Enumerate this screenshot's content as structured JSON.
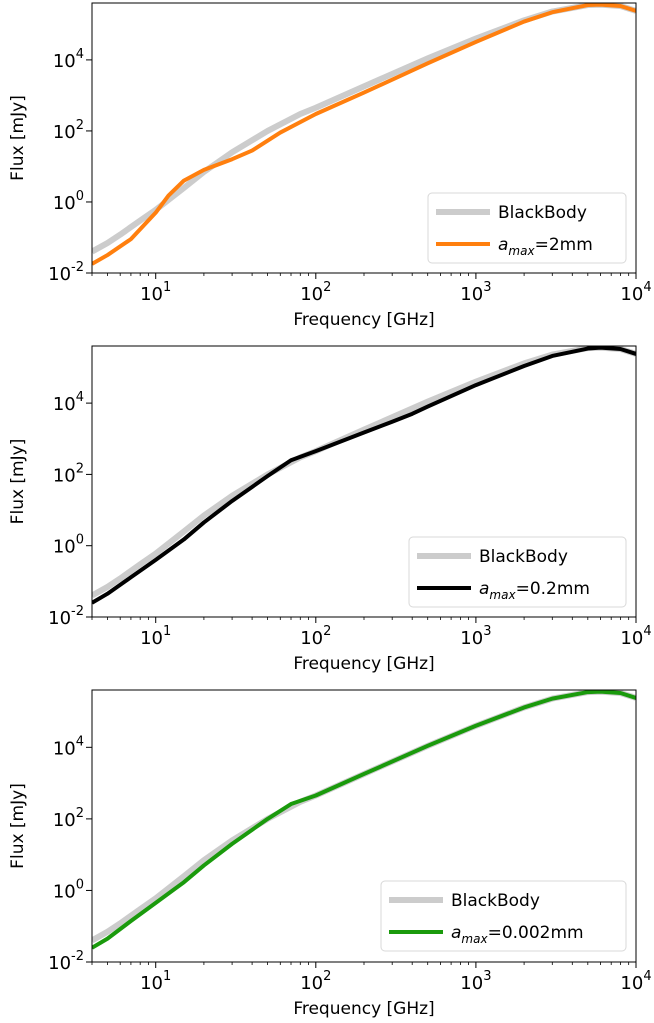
{
  "chart_data": [
    {
      "type": "line",
      "xlabel": "Frequency [GHz]",
      "ylabel": "Flux [mJy]",
      "xscale": "log",
      "yscale": "log",
      "xlim": [
        4,
        10000
      ],
      "ylim": [
        0.01,
        400000
      ],
      "xticks": [
        {
          "base": "10",
          "exp": "1",
          "value": 10
        },
        {
          "base": "10",
          "exp": "2",
          "value": 100
        },
        {
          "base": "10",
          "exp": "3",
          "value": 1000
        },
        {
          "base": "10",
          "exp": "4",
          "value": 10000
        }
      ],
      "yticks": [
        {
          "base": "10",
          "exp": "-2",
          "value": 0.01
        },
        {
          "base": "10",
          "exp": "0",
          "value": 1
        },
        {
          "base": "10",
          "exp": "2",
          "value": 100
        },
        {
          "base": "10",
          "exp": "4",
          "value": 10000
        }
      ],
      "legend_position": "lower right",
      "series": [
        {
          "name": "BlackBody",
          "color": "#cccccc",
          "x": [
            4,
            5,
            6,
            8,
            10,
            15,
            20,
            30,
            50,
            80,
            100,
            200,
            500,
            1000,
            2000,
            3000,
            5000,
            6000,
            8000,
            10000
          ],
          "y": [
            0.04,
            0.07,
            0.12,
            0.3,
            0.6,
            2.5,
            7,
            25,
            100,
            300,
            450,
            1800,
            11000,
            40000,
            130000,
            230000,
            350000,
            360000,
            330000,
            240000
          ]
        },
        {
          "name": "a_max=2mm",
          "label_prefix": "a",
          "label_sub": "max",
          "label_suffix": "=2mm",
          "color": "#ff7f0e",
          "x": [
            4,
            5,
            7,
            10,
            12,
            15,
            20,
            30,
            40,
            60,
            100,
            200,
            500,
            1000,
            2000,
            3000,
            5000,
            6000,
            8000,
            10000
          ],
          "y": [
            0.018,
            0.032,
            0.09,
            0.5,
            1.5,
            4,
            8,
            16,
            28,
            90,
            300,
            1200,
            8000,
            32000,
            120000,
            220000,
            350000,
            360000,
            330000,
            240000
          ]
        }
      ]
    },
    {
      "type": "line",
      "xlabel": "Frequency [GHz]",
      "ylabel": "Flux [mJy]",
      "xscale": "log",
      "yscale": "log",
      "xlim": [
        4,
        10000
      ],
      "ylim": [
        0.01,
        400000
      ],
      "xticks": [
        {
          "base": "10",
          "exp": "1",
          "value": 10
        },
        {
          "base": "10",
          "exp": "2",
          "value": 100
        },
        {
          "base": "10",
          "exp": "3",
          "value": 1000
        },
        {
          "base": "10",
          "exp": "4",
          "value": 10000
        }
      ],
      "yticks": [
        {
          "base": "10",
          "exp": "-2",
          "value": 0.01
        },
        {
          "base": "10",
          "exp": "0",
          "value": 1
        },
        {
          "base": "10",
          "exp": "2",
          "value": 100
        },
        {
          "base": "10",
          "exp": "4",
          "value": 10000
        }
      ],
      "legend_position": "lower right",
      "series": [
        {
          "name": "BlackBody",
          "color": "#cccccc",
          "x": [
            4,
            5,
            6,
            8,
            10,
            15,
            20,
            30,
            50,
            80,
            100,
            200,
            500,
            1000,
            2000,
            3000,
            5000,
            6000,
            8000,
            10000
          ],
          "y": [
            0.04,
            0.07,
            0.12,
            0.3,
            0.6,
            2.5,
            7,
            25,
            100,
            300,
            450,
            1800,
            11000,
            40000,
            130000,
            230000,
            350000,
            360000,
            330000,
            240000
          ]
        },
        {
          "name": "a_max=0.2mm",
          "label_prefix": "a",
          "label_sub": "max",
          "label_suffix": "=0.2mm",
          "color": "#000000",
          "x": [
            4,
            5,
            7,
            10,
            15,
            20,
            30,
            50,
            70,
            100,
            200,
            300,
            400,
            500,
            1000,
            2000,
            3000,
            5000,
            6000,
            8000,
            10000
          ],
          "y": [
            0.025,
            0.045,
            0.13,
            0.4,
            1.5,
            4.5,
            18,
            90,
            250,
            450,
            1500,
            3000,
            5000,
            8000,
            32000,
            110000,
            210000,
            340000,
            360000,
            330000,
            240000
          ]
        }
      ]
    },
    {
      "type": "line",
      "xlabel": "Frequency [GHz]",
      "ylabel": "Flux [mJy]",
      "xscale": "log",
      "yscale": "log",
      "xlim": [
        4,
        10000
      ],
      "ylim": [
        0.01,
        400000
      ],
      "xticks": [
        {
          "base": "10",
          "exp": "1",
          "value": 10
        },
        {
          "base": "10",
          "exp": "2",
          "value": 100
        },
        {
          "base": "10",
          "exp": "3",
          "value": 1000
        },
        {
          "base": "10",
          "exp": "4",
          "value": 10000
        }
      ],
      "yticks": [
        {
          "base": "10",
          "exp": "-2",
          "value": 0.01
        },
        {
          "base": "10",
          "exp": "0",
          "value": 1
        },
        {
          "base": "10",
          "exp": "2",
          "value": 100
        },
        {
          "base": "10",
          "exp": "4",
          "value": 10000
        }
      ],
      "legend_position": "lower right",
      "series": [
        {
          "name": "BlackBody",
          "color": "#cccccc",
          "x": [
            4,
            5,
            6,
            8,
            10,
            15,
            20,
            30,
            50,
            80,
            100,
            200,
            500,
            1000,
            2000,
            3000,
            5000,
            6000,
            8000,
            10000
          ],
          "y": [
            0.04,
            0.07,
            0.12,
            0.3,
            0.6,
            2.5,
            7,
            25,
            100,
            300,
            450,
            1800,
            11000,
            40000,
            130000,
            230000,
            350000,
            360000,
            330000,
            240000
          ]
        },
        {
          "name": "a_max=0.002mm",
          "label_prefix": "a",
          "label_sub": "max",
          "label_suffix": "=0.002mm",
          "color": "#1a9a0c",
          "x": [
            4,
            5,
            7,
            10,
            15,
            20,
            30,
            50,
            70,
            100,
            200,
            500,
            1000,
            2000,
            3000,
            5000,
            6000,
            8000,
            10000
          ],
          "y": [
            0.025,
            0.045,
            0.14,
            0.45,
            1.7,
            5,
            20,
            100,
            260,
            450,
            1800,
            11000,
            40000,
            130000,
            230000,
            350000,
            360000,
            330000,
            240000
          ]
        }
      ]
    }
  ]
}
